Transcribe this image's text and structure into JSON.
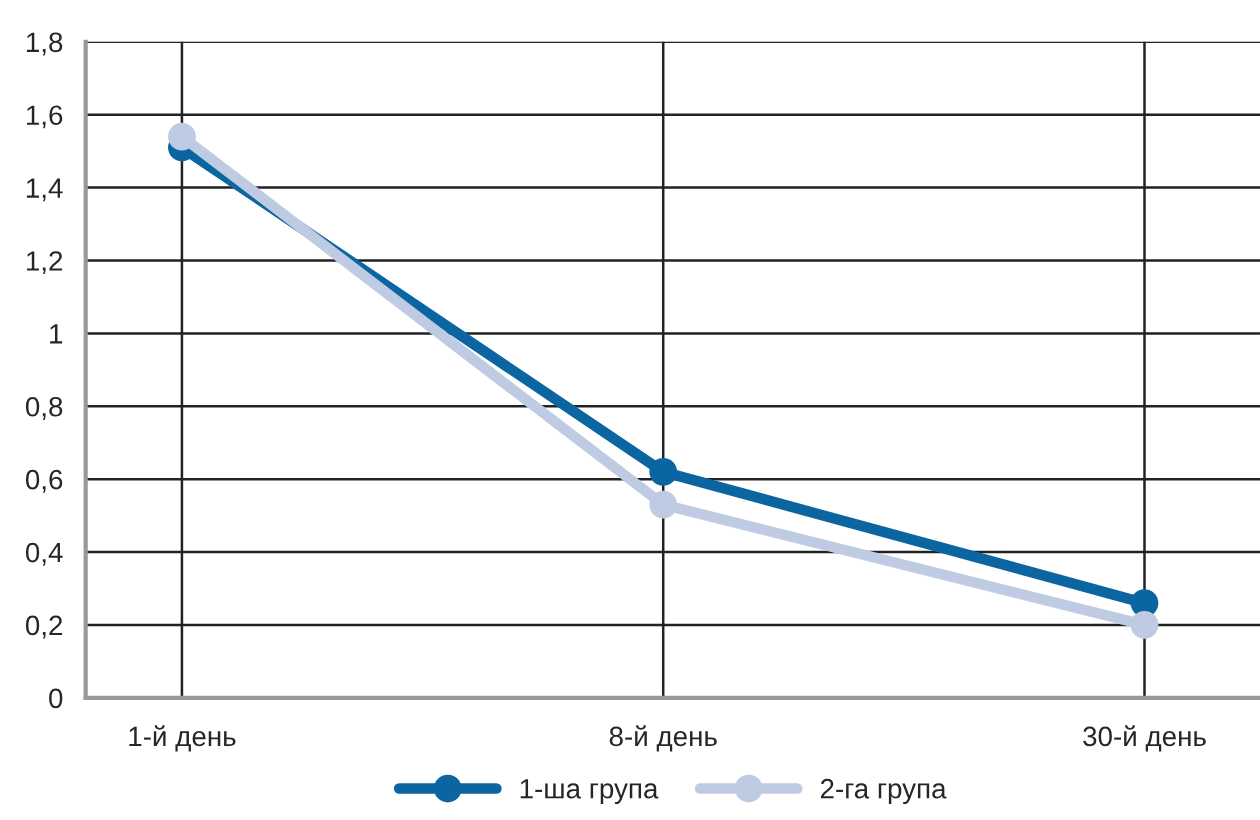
{
  "chart_data": {
    "type": "line",
    "categories": [
      "1-й день",
      "8-й день",
      "30-й день"
    ],
    "series": [
      {
        "name": "1-ша група",
        "color": "#0a65a0",
        "values": [
          1.51,
          0.62,
          0.26
        ]
      },
      {
        "name": "2-га група",
        "color": "#bfcbe3",
        "values": [
          1.54,
          0.53,
          0.2
        ]
      }
    ],
    "ylim": [
      0,
      1.8
    ],
    "yticks": [
      0,
      {
        "value": 0.2,
        "label": "0,2"
      },
      {
        "value": 0.4,
        "label": "0,4"
      },
      {
        "value": 0.6,
        "label": "0,6"
      },
      {
        "value": 0.8,
        "label": "0,8"
      },
      1,
      {
        "value": 1.2,
        "label": "1,2"
      },
      {
        "value": 1.4,
        "label": "1,4"
      },
      {
        "value": 1.6,
        "label": "1,6"
      },
      {
        "value": 1.8,
        "label": "1,8"
      }
    ],
    "grid": true,
    "legend": "bottom",
    "marker": "circle",
    "line_style": "solid"
  }
}
